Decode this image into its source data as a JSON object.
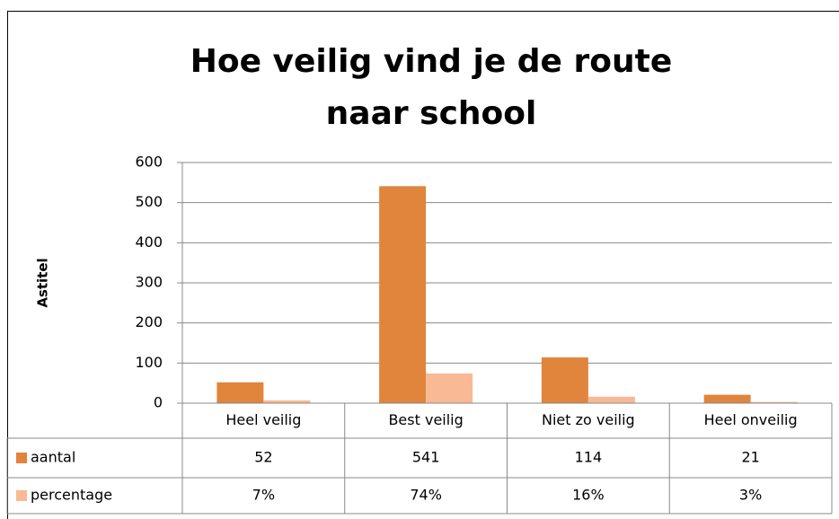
{
  "chart_data": {
    "type": "bar",
    "title": "Hoe veilig vind je de route naar school",
    "ylabel": "Astitel",
    "categories": [
      "Heel veilig",
      "Best veilig",
      "Niet zo veilig",
      "Heel onveilig"
    ],
    "series": [
      {
        "name": "aantal",
        "color": "#e0853b",
        "values": [
          52,
          541,
          114,
          21
        ]
      },
      {
        "name": "percentage",
        "color": "#f8b994",
        "values": [
          7,
          74,
          16,
          3
        ],
        "value_labels": [
          "7%",
          "74%",
          "16%",
          "3%"
        ]
      }
    ],
    "ylim": [
      0,
      600
    ],
    "yticks": [
      0,
      100,
      200,
      300,
      400,
      500,
      600
    ],
    "grid": true,
    "data_table": true
  }
}
